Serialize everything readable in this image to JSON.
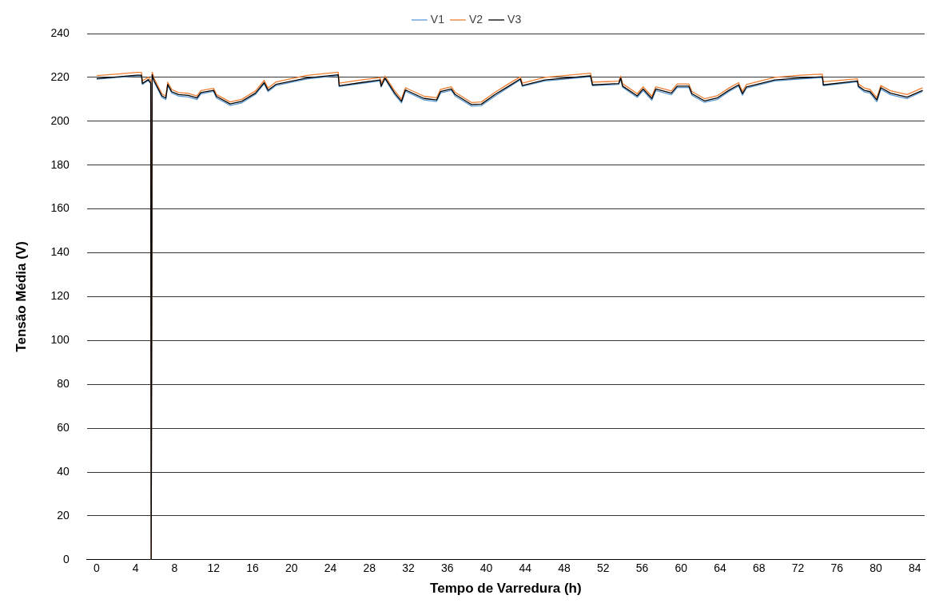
{
  "chart_data": {
    "type": "line",
    "xlabel": "Tempo de Varredura (h)",
    "ylabel": "Tensão Média (V)",
    "x": [
      0,
      2,
      4.1,
      4.6,
      4.7,
      5.3,
      5.55,
      5.6,
      5.7,
      5.9,
      6.7,
      7.1,
      7.3,
      7.7,
      8.4,
      9.4,
      10.3,
      10.7,
      12,
      12.3,
      13.7,
      14.9,
      16.3,
      17.2,
      17.6,
      18.4,
      21.6,
      24.8,
      24.9,
      27.1,
      29.1,
      29.2,
      29.6,
      30.6,
      31.3,
      31.7,
      33.6,
      34.9,
      35.3,
      36.4,
      36.8,
      38.5,
      39.5,
      40.9,
      42.3,
      43.5,
      43.7,
      46,
      50.7,
      50.9,
      53.6,
      53.8,
      54,
      55.5,
      56.1,
      57,
      57.4,
      59,
      59.6,
      60.8,
      61.1,
      62.4,
      63.7,
      64.9,
      65.9,
      66.3,
      66.7,
      69.6,
      72.3,
      74.5,
      74.6,
      78.1,
      78.2,
      78.8,
      79.4,
      80.1,
      80.5,
      81.5,
      83.2,
      84.8
    ],
    "series": [
      {
        "name": "V1",
        "color": "#5b9bd5",
        "values": [
          219.2,
          219.9,
          220.7,
          220.7,
          216.8,
          218.6,
          217.1,
          0,
          220.9,
          218,
          210.9,
          209.9,
          216.3,
          212.9,
          211.5,
          211.1,
          209.9,
          212.5,
          213.6,
          210.6,
          207.2,
          208.4,
          212.2,
          217.1,
          213.5,
          216.3,
          219.3,
          220.8,
          215.8,
          217.2,
          218.4,
          215.6,
          219.3,
          212.1,
          208.4,
          213.7,
          209.7,
          209,
          212.9,
          214.1,
          211.5,
          206.9,
          207.1,
          211.5,
          215.5,
          218.9,
          215.9,
          218.4,
          220.3,
          216.2,
          216.8,
          219.3,
          215.5,
          210.9,
          214,
          209.6,
          214,
          212.1,
          215.4,
          215.4,
          211.9,
          208.6,
          209.9,
          213.5,
          216.1,
          211.9,
          215.1,
          218.4,
          219.3,
          219.9,
          216.2,
          218,
          215.5,
          213.4,
          212.8,
          208.9,
          214.6,
          212.1,
          210.3,
          213.6
        ]
      },
      {
        "name": "V2",
        "color": "#ed7d31",
        "values": [
          220.8,
          221.5,
          222.3,
          222.3,
          218.4,
          220.1,
          218.7,
          0,
          222.4,
          219.5,
          212.5,
          211.5,
          217.8,
          214.5,
          213.1,
          212.7,
          211.5,
          214,
          215,
          212.2,
          208.8,
          210,
          213.8,
          218.6,
          215.1,
          217.9,
          220.9,
          222.4,
          217.4,
          218.8,
          219.9,
          217.1,
          220.6,
          213.8,
          210.1,
          215.3,
          211.4,
          210.7,
          214.5,
          215.7,
          213.2,
          208.5,
          208.8,
          213.2,
          217.1,
          220.3,
          217.4,
          220,
          221.9,
          217.8,
          218.3,
          220.6,
          217.1,
          212.6,
          215.7,
          211.4,
          215.7,
          213.8,
          217,
          217,
          213.6,
          210.3,
          211.6,
          215.1,
          217.6,
          213.6,
          216.7,
          220,
          221,
          221.5,
          218,
          219.4,
          217,
          215.2,
          214.5,
          210.7,
          216.3,
          213.9,
          212.2,
          215.3
        ]
      },
      {
        "name": "V3",
        "color": "#000000",
        "values": [
          219.5,
          220.2,
          221,
          221,
          217.2,
          219,
          217.5,
          0,
          221.3,
          218.4,
          211.6,
          210.6,
          216.8,
          213.5,
          212.2,
          211.8,
          210.6,
          213.1,
          214.1,
          211.3,
          207.9,
          209.1,
          212.8,
          217.6,
          214.1,
          216.8,
          219.7,
          221.2,
          216.2,
          217.6,
          218.8,
          216,
          219.7,
          212.8,
          209.1,
          214.3,
          210.4,
          209.7,
          213.5,
          214.7,
          212.2,
          207.6,
          207.8,
          212.2,
          216,
          219.3,
          216.3,
          218.8,
          220.7,
          216.6,
          217.2,
          219.7,
          216,
          211.6,
          214.7,
          210.4,
          214.7,
          212.8,
          216,
          216,
          212.6,
          209.3,
          210.6,
          214.1,
          216.6,
          212.6,
          215.6,
          218.8,
          219.7,
          220.3,
          216.6,
          218.4,
          216,
          214.1,
          213.5,
          209.7,
          215.3,
          212.8,
          211,
          214.1
        ]
      }
    ],
    "xlim": [
      -1,
      85
    ],
    "xticks": [
      0,
      4,
      8,
      12,
      16,
      20,
      24,
      28,
      32,
      36,
      40,
      44,
      48,
      52,
      56,
      60,
      64,
      68,
      72,
      76,
      80,
      84
    ],
    "ylim": [
      0,
      240
    ],
    "yticks": [
      0,
      20,
      40,
      60,
      80,
      100,
      120,
      140,
      160,
      180,
      200,
      220,
      240
    ],
    "grid": "y",
    "legend": "top",
    "marker": "none",
    "line_style": "solid"
  }
}
